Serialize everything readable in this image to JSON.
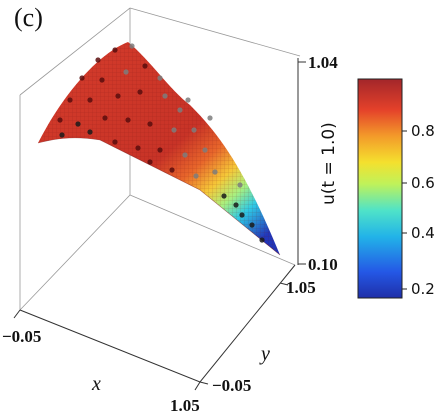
{
  "chart_data": {
    "type": "surface3d",
    "panel_label": "(c)",
    "xlabel": "x",
    "ylabel": "y",
    "zlabel": "u(t = 1.0)",
    "x_ticks": [
      "−0.05",
      "1.05"
    ],
    "y_ticks": [
      "−0.05",
      "1.05"
    ],
    "z_ticks": [
      "0.10",
      "1.04"
    ],
    "xlim": [
      -0.05,
      1.05
    ],
    "ylim": [
      -0.05,
      1.05
    ],
    "zlim": [
      0.1,
      1.04
    ],
    "colorbar": {
      "colormap": "jet",
      "range": [
        0.15,
        1.0
      ],
      "ticks": [
        "0.2",
        "0.4",
        "0.6",
        "0.8"
      ]
    },
    "grid": false
  }
}
